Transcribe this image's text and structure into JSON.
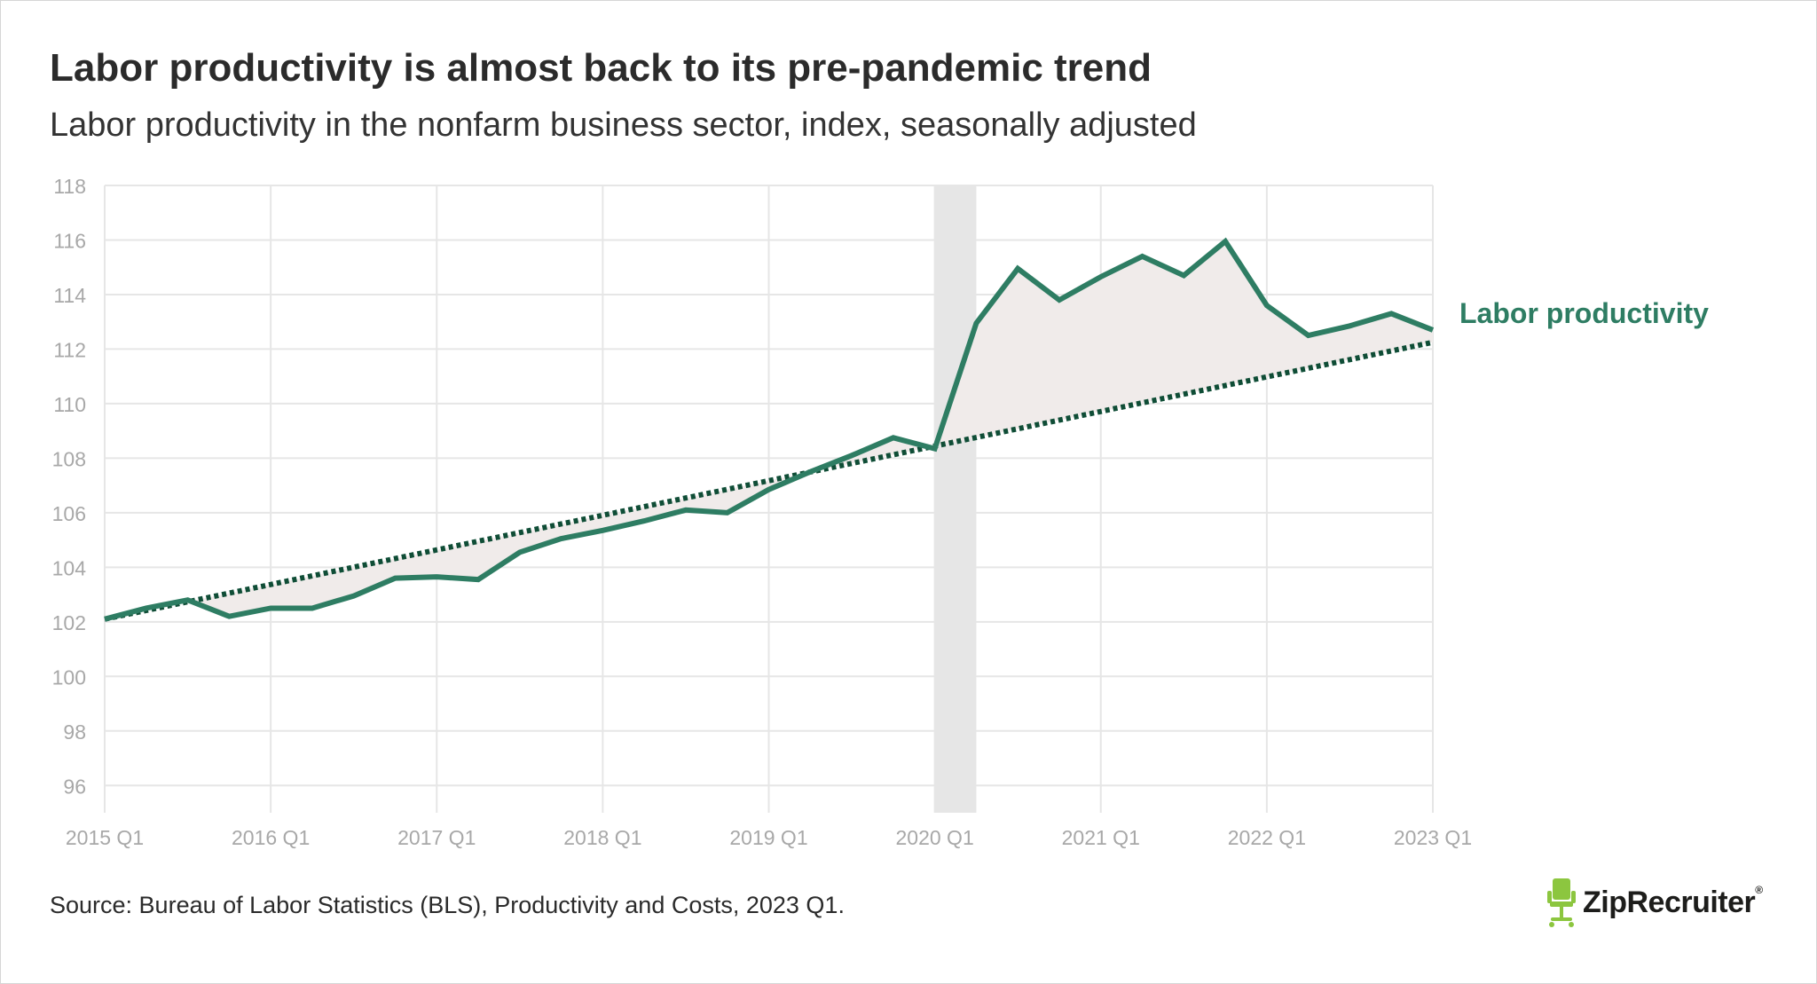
{
  "title": "Labor productivity is almost back to its pre-pandemic trend",
  "subtitle": "Labor productivity in the nonfarm business sector, index, seasonally adjusted",
  "source": "Source: Bureau of Labor Statistics (BLS), Productivity and Costs, 2023 Q1.",
  "brand": {
    "name": "ZipRecruiter",
    "reg_mark": "®"
  },
  "colors": {
    "line": "#2e7d63",
    "trend": "#0f4d36",
    "fill": "#f0ebea",
    "recession": "#e6e6e6",
    "grid": "#e6e6e6",
    "tick_text": "#a8a8a8",
    "brand_icon": "#8cc63f"
  },
  "chart_data": {
    "type": "line",
    "title": "Labor productivity is almost back to its pre-pandemic trend",
    "ylabel": "",
    "xlabel": "",
    "ylim": [
      95,
      118
    ],
    "y_ticks": [
      96,
      98,
      100,
      102,
      104,
      106,
      108,
      110,
      112,
      114,
      116,
      118
    ],
    "x_tick_labels": [
      "2015 Q1",
      "2016 Q1",
      "2017 Q1",
      "2018 Q1",
      "2019 Q1",
      "2020 Q1",
      "2021 Q1",
      "2022 Q1",
      "2023 Q1"
    ],
    "x_tick_indices": [
      0,
      4,
      8,
      12,
      16,
      20,
      24,
      28,
      32
    ],
    "grid": true,
    "recession_band": {
      "from_index": 20,
      "to_index": 21
    },
    "series": [
      {
        "name": "Labor productivity",
        "style": "solid",
        "x": [
          "2015 Q1",
          "2015 Q2",
          "2015 Q3",
          "2015 Q4",
          "2016 Q1",
          "2016 Q2",
          "2016 Q3",
          "2016 Q4",
          "2017 Q1",
          "2017 Q2",
          "2017 Q3",
          "2017 Q4",
          "2018 Q1",
          "2018 Q2",
          "2018 Q3",
          "2018 Q4",
          "2019 Q1",
          "2019 Q2",
          "2019 Q3",
          "2019 Q4",
          "2020 Q1",
          "2020 Q2",
          "2020 Q3",
          "2020 Q4",
          "2021 Q1",
          "2021 Q2",
          "2021 Q3",
          "2021 Q4",
          "2022 Q1",
          "2022 Q2",
          "2022 Q3",
          "2022 Q4",
          "2023 Q1"
        ],
        "values": [
          102.1,
          102.5,
          102.8,
          102.2,
          102.5,
          102.5,
          102.95,
          103.6,
          103.65,
          103.55,
          104.55,
          105.05,
          105.35,
          105.7,
          106.1,
          106.0,
          106.85,
          107.5,
          108.1,
          108.75,
          108.35,
          112.95,
          114.95,
          113.8,
          114.65,
          115.4,
          114.7,
          115.95,
          113.6,
          112.5,
          112.85,
          113.3,
          112.7
        ]
      },
      {
        "name": "Pre-pandemic trend",
        "style": "dotted",
        "x": [
          "2015 Q1",
          "2023 Q1"
        ],
        "values": [
          102.1,
          112.25
        ]
      }
    ],
    "annotations": [
      {
        "text": "Labor productivity",
        "series": "Labor productivity"
      }
    ]
  }
}
